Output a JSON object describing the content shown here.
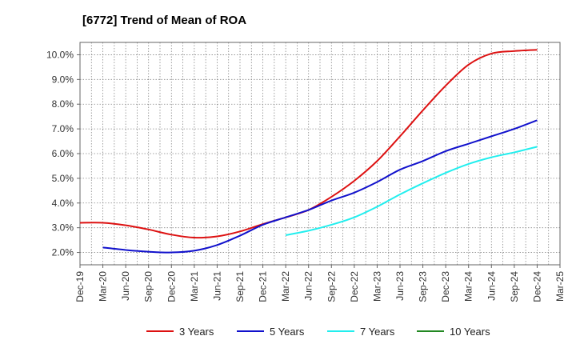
{
  "chart_data": {
    "type": "line",
    "title": "[6772]  Trend of Mean of ROA",
    "xlabel": "",
    "ylabel": "",
    "ylim": [
      1.5,
      10.5
    ],
    "grid": true,
    "legend_position": "bottom",
    "x_ticks": [
      "Dec-19",
      "Mar-20",
      "Jun-20",
      "Sep-20",
      "Dec-20",
      "Mar-21",
      "Jun-21",
      "Sep-21",
      "Dec-21",
      "Mar-22",
      "Jun-22",
      "Sep-22",
      "Dec-22",
      "Mar-23",
      "Jun-23",
      "Sep-23",
      "Dec-23",
      "Mar-24",
      "Jun-24",
      "Sep-24",
      "Dec-24",
      "Mar-25"
    ],
    "y_ticks": [
      2.0,
      3.0,
      4.0,
      5.0,
      6.0,
      7.0,
      8.0,
      9.0,
      10.0
    ],
    "y_tick_labels": [
      "2.0%",
      "3.0%",
      "4.0%",
      "5.0%",
      "6.0%",
      "7.0%",
      "8.0%",
      "9.0%",
      "10.0%"
    ],
    "series": [
      {
        "name": "3 Years",
        "color": "#dd1111",
        "start_index": 0,
        "values": [
          3.2,
          3.2,
          3.1,
          2.93,
          2.72,
          2.6,
          2.65,
          2.85,
          3.15,
          3.42,
          3.72,
          4.25,
          4.9,
          5.7,
          6.7,
          7.75,
          8.75,
          9.6,
          10.05,
          10.15,
          10.2
        ]
      },
      {
        "name": "5 Years",
        "color": "#1111cc",
        "start_index": 1,
        "values": [
          2.2,
          2.1,
          2.03,
          2.0,
          2.07,
          2.3,
          2.68,
          3.12,
          3.42,
          3.72,
          4.1,
          4.42,
          4.85,
          5.35,
          5.7,
          6.1,
          6.4,
          6.7,
          7.0,
          7.35
        ]
      },
      {
        "name": "7 Years",
        "color": "#22eeee",
        "start_index": 9,
        "values": [
          2.7,
          2.88,
          3.12,
          3.42,
          3.85,
          4.35,
          4.8,
          5.22,
          5.58,
          5.85,
          6.05,
          6.28
        ]
      },
      {
        "name": "10 Years",
        "color": "#228822",
        "start_index": 0,
        "values": []
      }
    ]
  }
}
